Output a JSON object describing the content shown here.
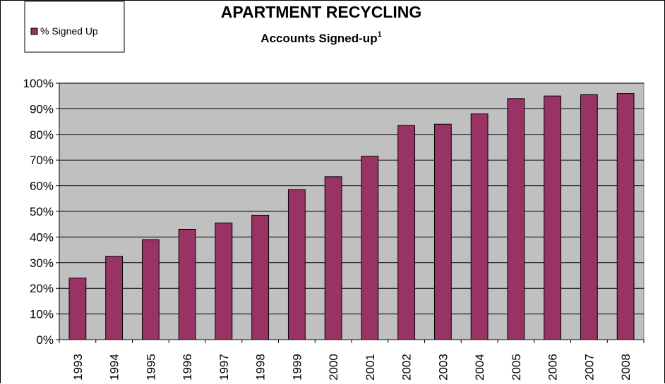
{
  "chart_data": {
    "type": "bar",
    "title": "APARTMENT RECYCLING",
    "subtitle": "Accounts Signed-up",
    "subtitle_superscript": "1",
    "legend_label": "% Signed Up",
    "legend_position": "top-left",
    "categories": [
      "1993",
      "1994",
      "1995",
      "1996",
      "1997",
      "1998",
      "1999",
      "2000",
      "2001",
      "2002",
      "2003",
      "2004",
      "2005",
      "2006",
      "2007",
      "2008"
    ],
    "series": [
      {
        "name": "% Signed Up",
        "values": [
          24,
          32.5,
          39,
          43,
          45.5,
          48.5,
          58.5,
          63.5,
          71.5,
          83.5,
          84,
          88,
          94,
          95,
          95.5,
          96
        ]
      }
    ],
    "ylim": [
      0,
      100
    ],
    "y_ticks": [
      0,
      10,
      20,
      30,
      40,
      50,
      60,
      70,
      80,
      90,
      100
    ],
    "y_tick_labels": [
      "0%",
      "10%",
      "20%",
      "30%",
      "40%",
      "50%",
      "60%",
      "70%",
      "80%",
      "90%",
      "100%"
    ],
    "grid": true,
    "colors": {
      "bar": "#993366",
      "plot_background": "#c0c0c0",
      "gridline": "#000000"
    }
  }
}
